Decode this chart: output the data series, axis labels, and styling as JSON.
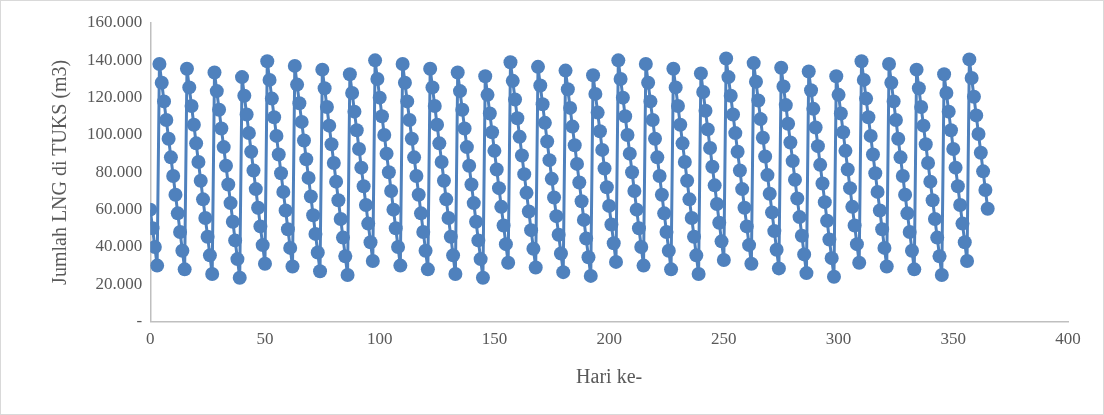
{
  "chart_data": {
    "type": "line",
    "xlabel": "Hari ke-",
    "ylabel": "Jumlah LNG di TUKS (m3)",
    "marker": "circle",
    "line_style": "solid",
    "grid": false,
    "legend": false,
    "xlim": [
      0,
      400
    ],
    "xticks": [
      0,
      50,
      100,
      150,
      200,
      250,
      300,
      350,
      400
    ],
    "ylim": [
      0,
      160000
    ],
    "yticks": [
      {
        "value": 0,
        "label": "-"
      },
      {
        "value": 20000,
        "label": "20.000"
      },
      {
        "value": 40000,
        "label": "40.000"
      },
      {
        "value": 60000,
        "label": "60.000"
      },
      {
        "value": 80000,
        "label": "80.000"
      },
      {
        "value": 100000,
        "label": "100.000"
      },
      {
        "value": 120000,
        "label": "120.000"
      },
      {
        "value": 140000,
        "label": "140.000"
      },
      {
        "value": 160000,
        "label": "160.000"
      }
    ],
    "x": [
      0,
      1,
      2,
      3,
      4,
      5,
      6,
      7,
      8,
      9,
      10,
      11,
      12,
      13,
      14,
      15,
      16,
      17,
      18,
      19,
      20,
      21,
      22,
      23,
      24,
      25,
      26,
      27,
      28,
      29,
      30,
      31,
      32,
      33,
      34,
      35,
      36,
      37,
      38,
      39,
      40,
      41,
      42,
      43,
      44,
      45,
      46,
      47,
      48,
      49,
      50,
      51,
      52,
      53,
      54,
      55,
      56,
      57,
      58,
      59,
      60,
      61,
      62,
      63,
      64,
      65,
      66,
      67,
      68,
      69,
      70,
      71,
      72,
      73,
      74,
      75,
      76,
      77,
      78,
      79,
      80,
      81,
      82,
      83,
      84,
      85,
      86,
      87,
      88,
      89,
      90,
      91,
      92,
      93,
      94,
      95,
      96,
      97,
      98,
      99,
      100,
      101,
      102,
      103,
      104,
      105,
      106,
      107,
      108,
      109,
      110,
      111,
      112,
      113,
      114,
      115,
      116,
      117,
      118,
      119,
      120,
      121,
      122,
      123,
      124,
      125,
      126,
      127,
      128,
      129,
      130,
      131,
      132,
      133,
      134,
      135,
      136,
      137,
      138,
      139,
      140,
      141,
      142,
      143,
      144,
      145,
      146,
      147,
      148,
      149,
      150,
      151,
      152,
      153,
      154,
      155,
      156,
      157,
      158,
      159,
      160,
      161,
      162,
      163,
      164,
      165,
      166,
      167,
      168,
      169,
      170,
      171,
      172,
      173,
      174,
      175,
      176,
      177,
      178,
      179,
      180,
      181,
      182,
      183,
      184,
      185,
      186,
      187,
      188,
      189,
      190,
      191,
      192,
      193,
      194,
      195,
      196,
      197,
      198,
      199,
      200,
      201,
      202,
      203,
      204,
      205,
      206,
      207,
      208,
      209,
      210,
      211,
      212,
      213,
      214,
      215,
      216,
      217,
      218,
      219,
      220,
      221,
      222,
      223,
      224,
      225,
      226,
      227,
      228,
      229,
      230,
      231,
      232,
      233,
      234,
      235,
      236,
      237,
      238,
      239,
      240,
      241,
      242,
      243,
      244,
      245,
      246,
      247,
      248,
      249,
      250,
      251,
      252,
      253,
      254,
      255,
      256,
      257,
      258,
      259,
      260,
      261,
      262,
      263,
      264,
      265,
      266,
      267,
      268,
      269,
      270,
      271,
      272,
      273,
      274,
      275,
      276,
      277,
      278,
      279,
      280,
      281,
      282,
      283,
      284,
      285,
      286,
      287,
      288,
      289,
      290,
      291,
      292,
      293,
      294,
      295,
      296,
      297,
      298,
      299,
      300,
      301,
      302,
      303,
      304,
      305,
      306,
      307,
      308,
      309,
      310,
      311,
      312,
      313,
      314,
      315,
      316,
      317,
      318,
      319,
      320,
      321,
      322,
      323,
      324,
      325,
      326,
      327,
      328,
      329,
      330,
      331,
      332,
      333,
      334,
      335,
      336,
      337,
      338,
      339,
      340,
      341,
      342,
      343,
      344,
      345,
      346,
      347,
      348,
      349,
      350,
      351,
      352,
      353,
      354,
      355,
      356,
      357,
      358,
      359,
      360,
      361,
      362,
      363,
      364,
      365
    ],
    "series": [
      {
        "color": "#4f81bd",
        "values": [
          60000,
          50000,
          40000,
          30000,
          138000,
          128000,
          118000,
          108000,
          98000,
          88000,
          78000,
          68000,
          58000,
          48000,
          38000,
          28000,
          135500,
          125500,
          115500,
          105500,
          95500,
          85500,
          75500,
          65500,
          55500,
          45500,
          35500,
          25500,
          133500,
          123500,
          113500,
          103500,
          93500,
          83500,
          73500,
          63500,
          53500,
          43500,
          33500,
          23500,
          131000,
          121000,
          111000,
          101000,
          91000,
          81000,
          71000,
          61000,
          51000,
          41000,
          31000,
          139500,
          129500,
          119500,
          109500,
          99500,
          89500,
          79500,
          69500,
          59500,
          49500,
          39500,
          29500,
          137000,
          127000,
          117000,
          107000,
          97000,
          87000,
          77000,
          67000,
          57000,
          47000,
          37000,
          27000,
          135000,
          125000,
          115000,
          105000,
          95000,
          85000,
          75000,
          65000,
          55000,
          45000,
          35000,
          25000,
          132500,
          122500,
          112500,
          102500,
          92500,
          82500,
          72500,
          62500,
          52500,
          42500,
          32500,
          140000,
          130000,
          120000,
          110000,
          100000,
          90000,
          80000,
          70000,
          60000,
          50000,
          40000,
          30000,
          138000,
          128000,
          118000,
          108000,
          98000,
          88000,
          78000,
          68000,
          58000,
          48000,
          38000,
          28000,
          135500,
          125500,
          115500,
          105500,
          95500,
          85500,
          75500,
          65500,
          55500,
          45500,
          35500,
          25500,
          133500,
          123500,
          113500,
          103500,
          93500,
          83500,
          73500,
          63500,
          53500,
          43500,
          33500,
          23500,
          131500,
          121500,
          111500,
          101500,
          91500,
          81500,
          71500,
          61500,
          51500,
          41500,
          31500,
          139000,
          129000,
          119000,
          109000,
          99000,
          89000,
          79000,
          69000,
          59000,
          49000,
          39000,
          29000,
          136500,
          126500,
          116500,
          106500,
          96500,
          86500,
          76500,
          66500,
          56500,
          46500,
          36500,
          26500,
          134500,
          124500,
          114500,
          104500,
          94500,
          84500,
          74500,
          64500,
          54500,
          44500,
          34500,
          24500,
          132000,
          122000,
          112000,
          102000,
          92000,
          82000,
          72000,
          62000,
          52000,
          42000,
          32000,
          140000,
          130000,
          120000,
          110000,
          100000,
          90000,
          80000,
          70000,
          60000,
          50000,
          40000,
          30000,
          138000,
          128000,
          118000,
          108000,
          98000,
          88000,
          78000,
          68000,
          58000,
          48000,
          38000,
          28000,
          135500,
          125500,
          115500,
          105500,
          95500,
          85500,
          75500,
          65500,
          55500,
          45500,
          35500,
          25500,
          133000,
          123000,
          113000,
          103000,
          93000,
          83000,
          73000,
          63000,
          53000,
          43000,
          33000,
          141000,
          131000,
          121000,
          111000,
          101000,
          91000,
          81000,
          71000,
          61000,
          51000,
          41000,
          31000,
          138500,
          128500,
          118500,
          108500,
          98500,
          88500,
          78500,
          68500,
          58500,
          48500,
          38500,
          28500,
          136000,
          126000,
          116000,
          106000,
          96000,
          86000,
          76000,
          66000,
          56000,
          46000,
          36000,
          26000,
          134000,
          124000,
          114000,
          104000,
          94000,
          84000,
          74000,
          64000,
          54000,
          44000,
          34000,
          24000,
          131500,
          121500,
          111500,
          101500,
          91500,
          81500,
          71500,
          61500,
          51500,
          41500,
          31500,
          139500,
          129500,
          119500,
          109500,
          99500,
          89500,
          79500,
          69500,
          59500,
          49500,
          39500,
          29500,
          138000,
          128000,
          118000,
          108000,
          98000,
          88000,
          78000,
          68000,
          58000,
          48000,
          38000,
          28000,
          135000,
          125000,
          115000,
          105000,
          95000,
          85000,
          75000,
          65000,
          55000,
          45000,
          35000,
          25000,
          132500,
          122500,
          112500,
          102500,
          92500,
          82500,
          72500,
          62500,
          52500,
          42500,
          32500,
          140500,
          130500,
          120500,
          110500,
          100500,
          90500,
          80500,
          70500,
          60500
        ]
      }
    ]
  }
}
